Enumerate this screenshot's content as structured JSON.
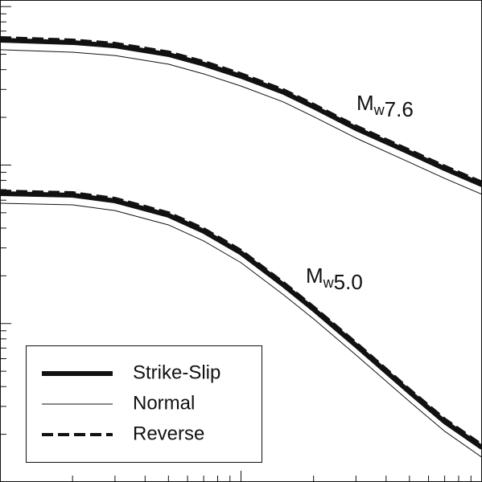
{
  "chart_data": {
    "type": "line",
    "x": [
      1,
      2,
      3,
      5,
      7,
      10,
      15,
      20,
      30,
      50,
      70,
      100
    ],
    "series": [
      {
        "name": "Strike-Slip",
        "color": "#111111",
        "width": 6,
        "dash": "none",
        "curves": [
          [
            0.614,
            0.593,
            0.565,
            0.498,
            0.433,
            0.363,
            0.288,
            0.233,
            0.17,
            0.12,
            0.0948,
            0.0751
          ],
          [
            0.066,
            0.0645,
            0.0594,
            0.0482,
            0.0382,
            0.0279,
            0.0175,
            0.0123,
            0.00728,
            0.0037,
            0.0024,
            0.00165
          ]
        ]
      },
      {
        "name": "Normal",
        "color": "#111111",
        "width": 1,
        "dash": "none",
        "curves": [
          [
            0.534,
            0.515,
            0.491,
            0.433,
            0.376,
            0.315,
            0.25,
            0.202,
            0.148,
            0.104,
            0.0824,
            0.0653
          ],
          [
            0.0574,
            0.0561,
            0.0516,
            0.0419,
            0.0332,
            0.0242,
            0.0152,
            0.0107,
            0.00633,
            0.00322,
            0.00209,
            0.00143
          ]
        ]
      },
      {
        "name": "Reverse",
        "color": "#111111",
        "width": 4,
        "dash": "14,6",
        "curves": [
          [
            0.636,
            0.614,
            0.585,
            0.516,
            0.449,
            0.376,
            0.298,
            0.241,
            0.176,
            0.124,
            0.0982,
            0.0778
          ],
          [
            0.0684,
            0.0668,
            0.0615,
            0.0499,
            0.0396,
            0.0289,
            0.0181,
            0.0127,
            0.00754,
            0.00383,
            0.00249,
            0.00171
          ]
        ]
      }
    ],
    "annotations": [
      {
        "text": "M",
        "subscript": "w",
        "value": "7.6"
      },
      {
        "text": "M",
        "subscript": "w",
        "value": "5.0"
      }
    ],
    "xscale": "log",
    "yscale": "log",
    "xlim": [
      1,
      100
    ],
    "ylim": [
      0.001,
      1.1
    ],
    "xticks": [
      2,
      3,
      4,
      5,
      6,
      7,
      8,
      9,
      10,
      20,
      30,
      40,
      50,
      60,
      70,
      80,
      90
    ],
    "yticks": [
      0.002,
      0.003,
      0.004,
      0.005,
      0.006,
      0.007,
      0.008,
      0.009,
      0.01,
      0.02,
      0.03,
      0.04,
      0.05,
      0.06,
      0.07,
      0.08,
      0.09,
      0.1,
      0.2,
      0.3,
      0.4,
      0.5,
      0.6,
      0.7,
      0.8,
      0.9,
      1
    ],
    "legend": "lower left"
  }
}
